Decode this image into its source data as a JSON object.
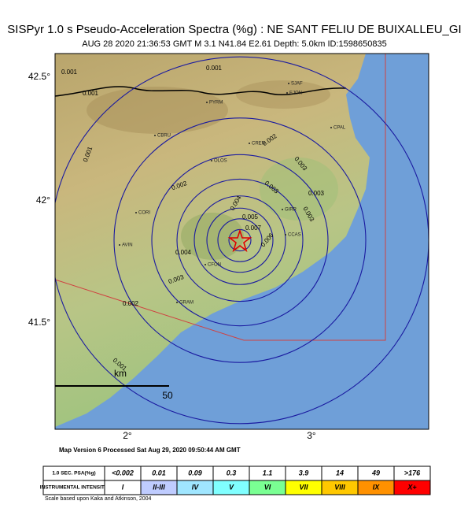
{
  "header": {
    "title": "SISPyr 1.0 s Pseudo-Acceleration Spectra (%g) : NE SANT FELIU DE BUIXALLEU_GI",
    "subtitle": "AUG 28 2020 21:36:53  GMT    M 3.1    N41.84 E2.61    Depth: 5.0km    ID:1598650835"
  },
  "map": {
    "lat_labels": [
      "42.5°",
      "42°",
      "41.5°"
    ],
    "lon_labels": [
      "2°",
      "3°"
    ],
    "contour_labels": [
      "0.001",
      "0.001",
      "0.001",
      "0.001",
      "0.001",
      "0.002",
      "0.002",
      "0.002",
      "0.003",
      "0.003",
      "0.003",
      "0.003",
      "0.003",
      "0.004",
      "0.004",
      "0.005",
      "0.006",
      "0.007"
    ],
    "place_labels": [
      "PYRM",
      "SJAF",
      "EJON",
      "CPAL",
      "CBRU",
      "CREN",
      "OLOS",
      "CORI",
      "AVIN",
      "GIRR",
      "CCAS",
      "CFON",
      "GRAM"
    ],
    "scale": {
      "unit": "km",
      "distance": "50"
    }
  },
  "footer": {
    "processed": "Map Version 6 Processed Sat Aug 29, 2020 09:50:44 AM GMT"
  },
  "legend": {
    "psa_header": "1.0 SEC. PSA(%g)",
    "intensity_header": "INSTRUMENTAL INTENSITY",
    "columns": [
      {
        "psa": "<0.002",
        "intensity": "I",
        "color": "#ffffff"
      },
      {
        "psa": "0.01",
        "intensity": "II-III",
        "color": "#bfccff"
      },
      {
        "psa": "0.09",
        "intensity": "IV",
        "color": "#a0e6ff"
      },
      {
        "psa": "0.3",
        "intensity": "V",
        "color": "#80ffff"
      },
      {
        "psa": "1.1",
        "intensity": "VI",
        "color": "#7aff93"
      },
      {
        "psa": "3.9",
        "intensity": "VII",
        "color": "#ffff00"
      },
      {
        "psa": "14",
        "intensity": "VIII",
        "color": "#ffc800"
      },
      {
        "psa": "49",
        "intensity": "IX",
        "color": "#ff9100"
      },
      {
        "psa": ">176",
        "intensity": "X+",
        "color": "#ff0000"
      }
    ],
    "note": "Scale based upon Kaka and Atkinson, 2004"
  }
}
